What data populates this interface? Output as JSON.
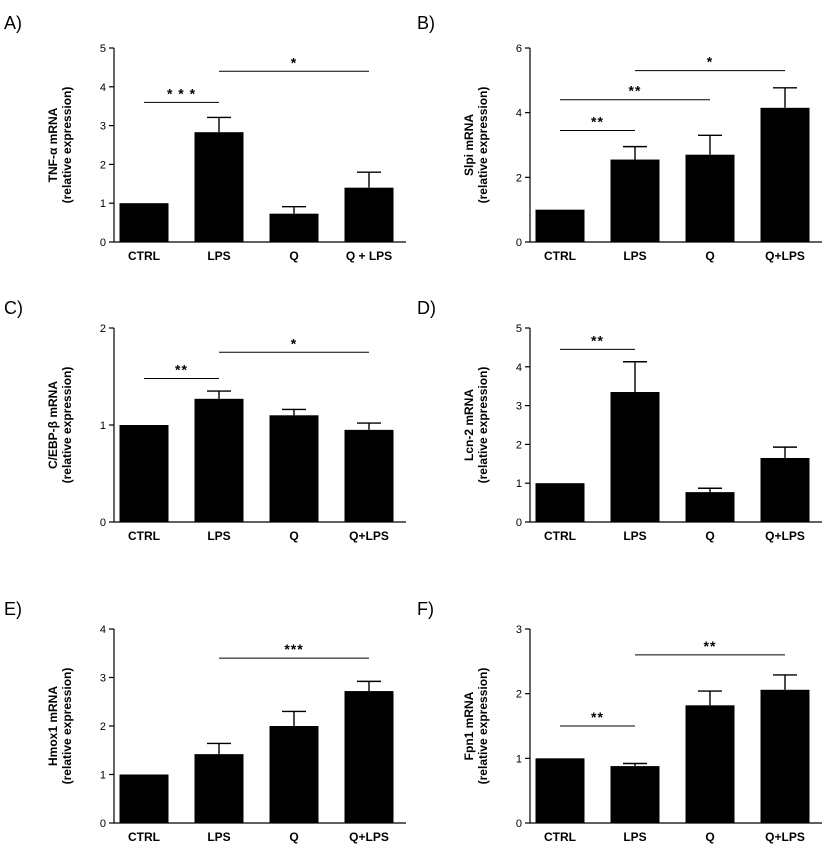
{
  "colors": {
    "bar": "#000000",
    "axis": "#000000",
    "background": "#ffffff"
  },
  "chart_data": [
    {
      "type": "bar",
      "panel": "A)",
      "title": "",
      "ylabel_line1": "TNF-α mRNA",
      "ylabel_line2": "(relative expression)",
      "xlabel": "",
      "categories": [
        "CTRL",
        "LPS",
        "Q",
        "Q + LPS"
      ],
      "values": [
        1.0,
        2.83,
        0.73,
        1.4
      ],
      "errors": [
        0,
        0.38,
        0.18,
        0.4
      ],
      "ylim": [
        0,
        5
      ],
      "yticks": [
        0,
        1,
        2,
        3,
        4,
        5
      ],
      "significance": [
        {
          "from": 0,
          "to": 1,
          "label": "* * *",
          "y": 3.6
        },
        {
          "from": 1,
          "to": 3,
          "label": "*",
          "y": 4.4
        }
      ]
    },
    {
      "type": "bar",
      "panel": "B)",
      "title": "",
      "ylabel_line1": "Slpi mRNA",
      "ylabel_line2": "(relative expression)",
      "xlabel": "",
      "categories": [
        "CTRL",
        "LPS",
        "Q",
        "Q+LPS"
      ],
      "values": [
        1.0,
        2.55,
        2.7,
        4.15
      ],
      "errors": [
        0,
        0.4,
        0.6,
        0.62
      ],
      "ylim": [
        0,
        6
      ],
      "yticks": [
        0,
        2,
        4,
        6
      ],
      "significance": [
        {
          "from": 0,
          "to": 1,
          "label": "**",
          "y": 3.45
        },
        {
          "from": 0,
          "to": 2,
          "label": "**",
          "y": 4.4
        },
        {
          "from": 1,
          "to": 3,
          "label": "*",
          "y": 5.3
        }
      ]
    },
    {
      "type": "bar",
      "panel": "C)",
      "title": "",
      "ylabel_line1": "C/EBP-β mRNA",
      "ylabel_line2": "(relative expression)",
      "xlabel": "",
      "categories": [
        "CTRL",
        "LPS",
        "Q",
        "Q+LPS"
      ],
      "values": [
        1.0,
        1.27,
        1.1,
        0.95
      ],
      "errors": [
        0,
        0.08,
        0.06,
        0.07
      ],
      "ylim": [
        0,
        2
      ],
      "yticks": [
        0,
        1,
        2
      ],
      "significance": [
        {
          "from": 0,
          "to": 1,
          "label": "**",
          "y": 1.48
        },
        {
          "from": 1,
          "to": 3,
          "label": "*",
          "y": 1.75
        }
      ]
    },
    {
      "type": "bar",
      "panel": "D)",
      "title": "",
      "ylabel_line1": "Lcn-2 mRNA",
      "ylabel_line2": "(relative expression)",
      "xlabel": "",
      "categories": [
        "CTRL",
        "LPS",
        "Q",
        "Q+LPS"
      ],
      "values": [
        1.0,
        3.35,
        0.77,
        1.65
      ],
      "errors": [
        0,
        0.78,
        0.1,
        0.28
      ],
      "ylim": [
        0,
        5
      ],
      "yticks": [
        0,
        1,
        2,
        3,
        4,
        5
      ],
      "significance": [
        {
          "from": 0,
          "to": 1,
          "label": "**",
          "y": 4.45
        }
      ]
    },
    {
      "type": "bar",
      "panel": "E)",
      "title": "",
      "ylabel_line1": "Hmox1 mRNA",
      "ylabel_line2": "(relative expression)",
      "xlabel": "",
      "categories": [
        "CTRL",
        "LPS",
        "Q",
        "Q+LPS"
      ],
      "values": [
        1.0,
        1.42,
        2.0,
        2.72
      ],
      "errors": [
        0,
        0.22,
        0.3,
        0.2
      ],
      "ylim": [
        0,
        4
      ],
      "yticks": [
        0,
        1,
        2,
        3,
        4
      ],
      "significance": [
        {
          "from": 1,
          "to": 3,
          "label": "***",
          "y": 3.4
        }
      ]
    },
    {
      "type": "bar",
      "panel": "F)",
      "title": "",
      "ylabel_line1": "Fpn1 mRNA",
      "ylabel_line2": "(relative expression)",
      "xlabel": "",
      "categories": [
        "CTRL",
        "LPS",
        "Q",
        "Q+LPS"
      ],
      "values": [
        1.0,
        0.88,
        1.82,
        2.06
      ],
      "errors": [
        0,
        0.04,
        0.22,
        0.23
      ],
      "ylim": [
        0,
        3
      ],
      "yticks": [
        0,
        1,
        2,
        3
      ],
      "significance": [
        {
          "from": 0,
          "to": 1,
          "label": "**",
          "y": 1.5
        },
        {
          "from": 1,
          "to": 3,
          "label": "**",
          "y": 2.6
        }
      ]
    }
  ]
}
